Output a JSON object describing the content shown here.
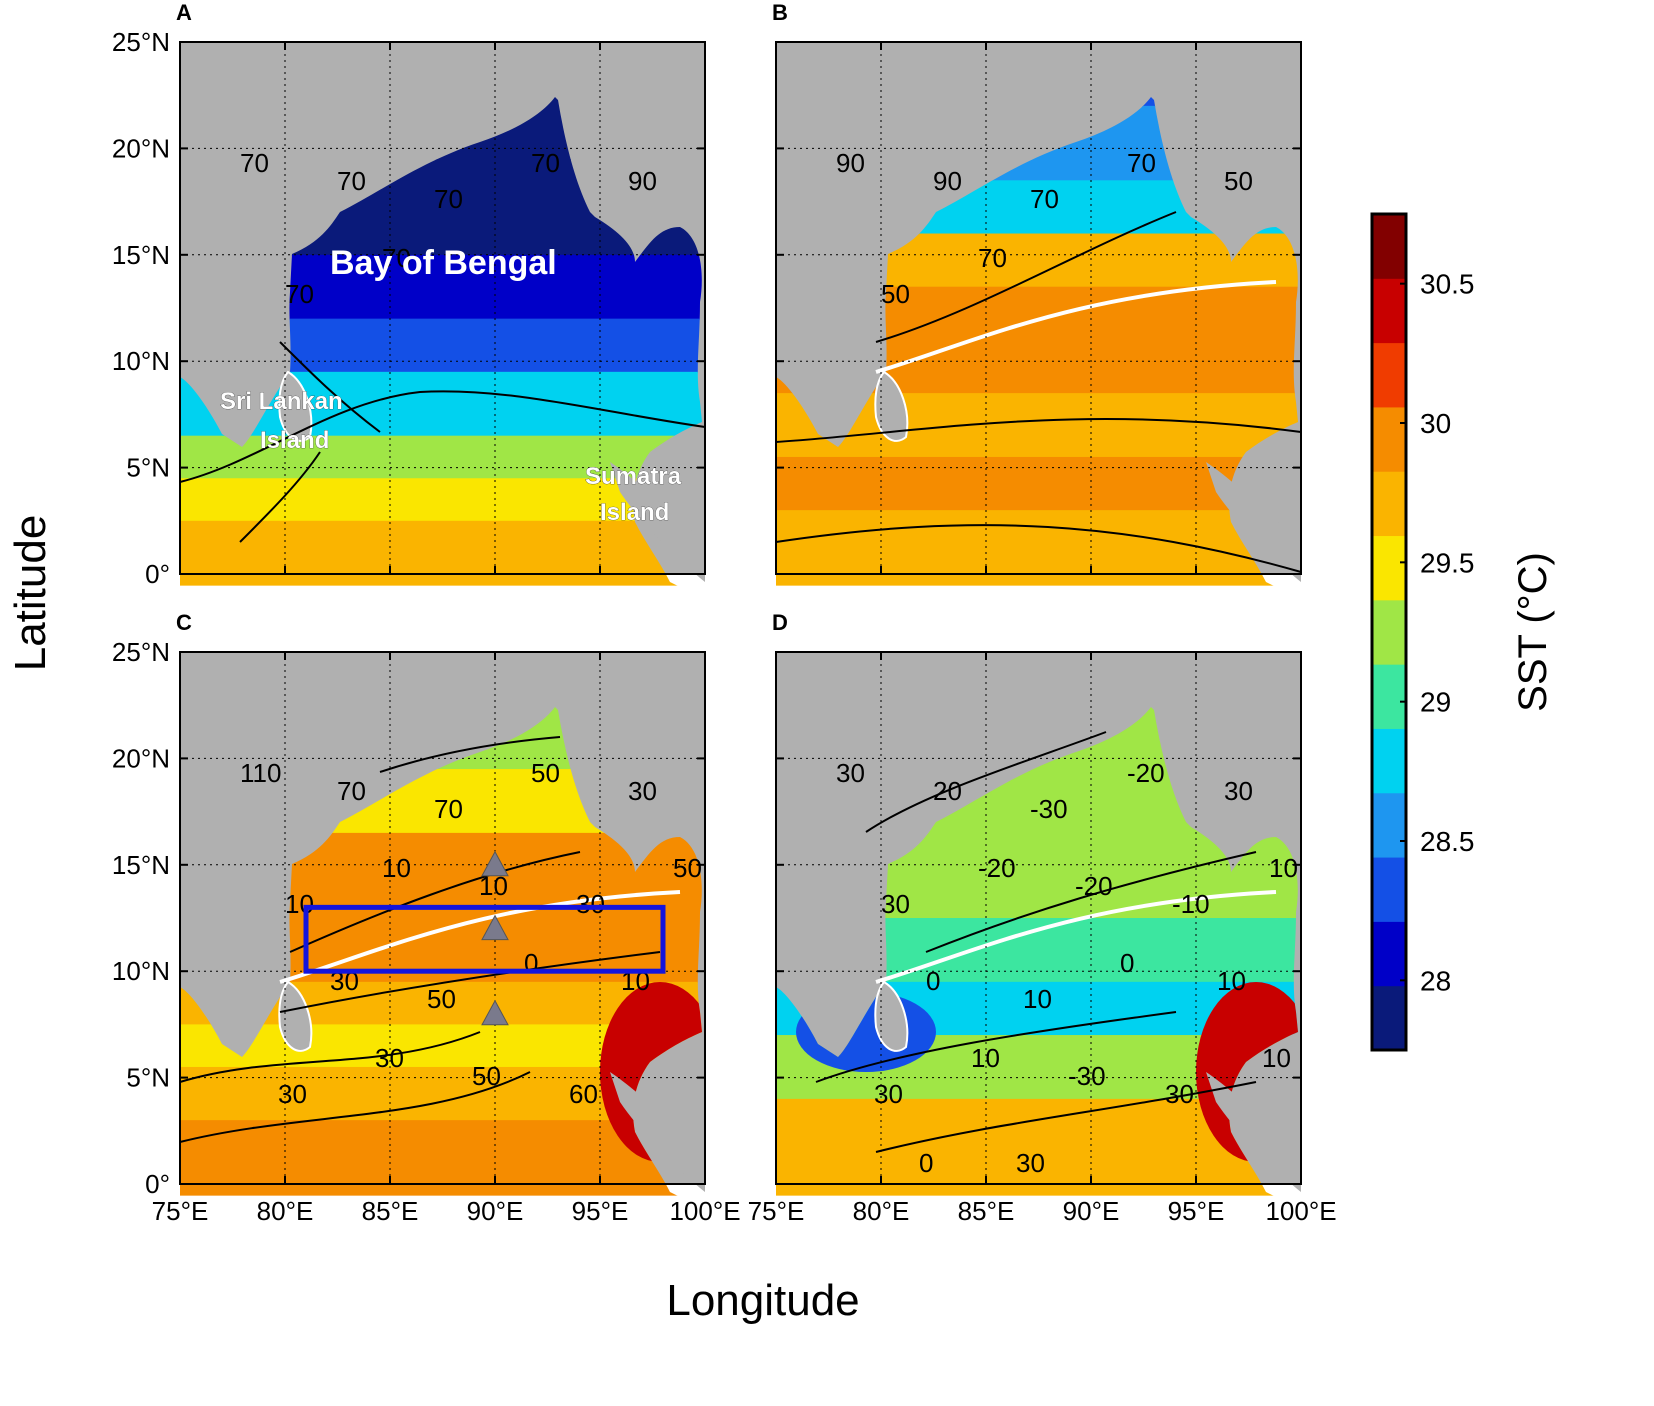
{
  "figure": {
    "x_axis_title": "Longitude",
    "y_axis_title": "Latitude",
    "lon_ticks": [
      "75°E",
      "80°E",
      "85°E",
      "90°E",
      "95°E",
      "100°E"
    ],
    "lat_ticks": [
      "0°",
      "5°N",
      "10°N",
      "15°N",
      "20°N",
      "25°N"
    ]
  },
  "colorbar": {
    "title": "SST (°C)",
    "tick_labels": [
      "28",
      "28.5",
      "29",
      "29.5",
      "30",
      "30.5"
    ],
    "colors": [
      "#0a1a7a",
      "#0000c8",
      "#1450e6",
      "#1e96f0",
      "#00d2f0",
      "#3ce6a0",
      "#a0e646",
      "#fae600",
      "#fab400",
      "#f58c00",
      "#f03c00",
      "#c80000",
      "#820000"
    ]
  },
  "panels": [
    {
      "letter": "A",
      "annotations": [
        {
          "text": "Bay of Bengal",
          "kind": "big"
        },
        {
          "text": "Sri Lankan",
          "kind": "small"
        },
        {
          "text": "Island",
          "kind": "small"
        },
        {
          "text": "Sumatra",
          "kind": "small"
        },
        {
          "text": "Island",
          "kind": "small"
        }
      ],
      "contour_labels": [
        "70",
        "70",
        "70",
        "70",
        "90",
        "70",
        "70"
      ]
    },
    {
      "letter": "B",
      "annotations": [],
      "contour_labels": [
        "90",
        "90",
        "70",
        "70",
        "50",
        "50",
        "70"
      ]
    },
    {
      "letter": "C",
      "annotations": [],
      "contour_labels": [
        "110",
        "70",
        "70",
        "50",
        "30",
        "10",
        "10",
        "10",
        "30",
        "50",
        "30",
        "50",
        "0",
        "10",
        "30",
        "30",
        "50",
        "60"
      ]
    },
    {
      "letter": "D",
      "annotations": [],
      "contour_labels": [
        "30",
        "20",
        "-30",
        "-20",
        "30",
        "30",
        "-20",
        "-20",
        "-10",
        "10",
        "0",
        "10",
        "0",
        "10",
        "30",
        "10",
        "-30",
        "30",
        "10",
        "0",
        "30"
      ]
    }
  ],
  "chart_data": {
    "type": "heatmap",
    "title": "",
    "xlabel": "Longitude",
    "ylabel": "Latitude",
    "colorbar_label": "SST (°C)",
    "x_range": [
      75,
      100
    ],
    "y_range": [
      0,
      25
    ],
    "color_range": [
      27.75,
      30.75
    ],
    "panels": [
      {
        "letter": "A",
        "description_values": {
          "north_bay_sst": 27.9,
          "central_bay_sst": 28.4,
          "south_of_10N_sst": 29.0,
          "equator_sst": 29.6
        }
      },
      {
        "letter": "B",
        "description_values": {
          "north_bay_sst": 28.5,
          "central_bay_sst": 29.9,
          "south_sst": 29.7
        }
      },
      {
        "letter": "C",
        "description_values": {
          "north_bay_sst": 29.3,
          "central_bay_sst": 29.9,
          "south_sst": 29.6
        }
      },
      {
        "letter": "D",
        "description_values": {
          "north_bay_sst": 29.2,
          "central_bay_sst": 29.0,
          "southeast_sst": 30.3
        }
      }
    ],
    "markers_panel_C": [
      {
        "lon": 90,
        "lat": 15
      },
      {
        "lon": 90,
        "lat": 12
      },
      {
        "lon": 90,
        "lat": 8
      }
    ],
    "box_panel_C": {
      "lon_min": 81,
      "lon_max": 98,
      "lat_min": 10,
      "lat_max": 13
    },
    "grid": true
  }
}
